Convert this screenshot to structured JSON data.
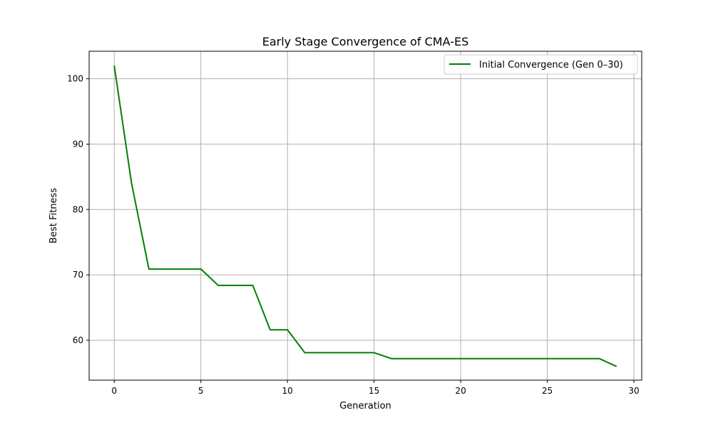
{
  "chart_data": {
    "type": "line",
    "title": "Early Stage Convergence of CMA-ES",
    "xlabel": "Generation",
    "ylabel": "Best Fitness",
    "xlim": [
      -1.45,
      30.45
    ],
    "ylim": [
      53.9,
      104.2
    ],
    "xticks": [
      0,
      5,
      10,
      15,
      20,
      25,
      30
    ],
    "yticks": [
      60,
      70,
      80,
      90,
      100
    ],
    "grid": true,
    "legend_position": "upper right",
    "series": [
      {
        "name": "Initial Convergence (Gen 0–30)",
        "color": "#008000",
        "x": [
          0,
          1,
          2,
          3,
          4,
          5,
          6,
          7,
          8,
          9,
          10,
          11,
          12,
          13,
          14,
          15,
          16,
          17,
          18,
          19,
          20,
          21,
          22,
          23,
          24,
          25,
          26,
          27,
          28,
          29
        ],
        "y": [
          102.0,
          84.0,
          70.9,
          70.9,
          70.9,
          70.9,
          68.4,
          68.4,
          68.4,
          61.6,
          61.6,
          58.1,
          58.1,
          58.1,
          58.1,
          58.1,
          57.2,
          57.2,
          57.2,
          57.2,
          57.2,
          57.2,
          57.2,
          57.2,
          57.2,
          57.2,
          57.2,
          57.2,
          57.2,
          56.0
        ]
      }
    ]
  }
}
